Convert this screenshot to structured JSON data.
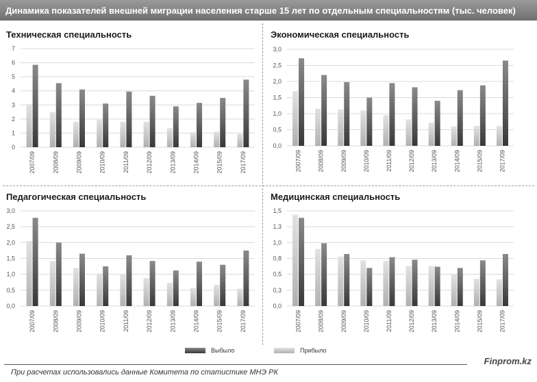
{
  "header": {
    "title": "Динамика показателей внешней миграции  населения старше 15 лет по отдельным  специальностям (тыс. человек)"
  },
  "colors": {
    "header_bg": "#7f7f7f",
    "arrived_top": "#e2e2e2",
    "arrived_bottom": "#b0b0b0",
    "departed_top": "#8a8a8a",
    "departed_bottom": "#383838",
    "grid": "#d9d9d9"
  },
  "legend": {
    "departed": "Выбыло",
    "arrived": "Прибыло"
  },
  "footer": {
    "brand": "Finprom.kz",
    "source": "При расчетах использовались данные Комитета по статистике МНЭ РК"
  },
  "chart_data": [
    {
      "type": "bar",
      "title": "Техническая специальность",
      "categories": [
        "2007/09",
        "2008/09",
        "2009/09",
        "2010/09",
        "2011/09",
        "2012/09",
        "2013/09",
        "2014/09",
        "2015/09",
        "2017/09"
      ],
      "series": [
        {
          "name": "Прибыло",
          "values": [
            3.05,
            2.5,
            1.8,
            1.95,
            1.8,
            1.8,
            1.35,
            1.05,
            1.1,
            0.95
          ]
        },
        {
          "name": "Выбыло",
          "values": [
            5.85,
            4.55,
            4.1,
            3.1,
            3.95,
            3.65,
            2.9,
            3.15,
            3.5,
            4.8
          ]
        }
      ],
      "yticks": [
        "0",
        "1",
        "2",
        "3",
        "4",
        "5",
        "6",
        "7"
      ],
      "ylim": [
        0,
        7
      ]
    },
    {
      "type": "bar",
      "title": "Экономическая специальность",
      "categories": [
        "2007/09",
        "2008/09",
        "2009/09",
        "2010/09",
        "2011/09",
        "2012/09",
        "2013/09",
        "2014/09",
        "2015/09",
        "2017/09"
      ],
      "series": [
        {
          "name": "Прибыло",
          "values": [
            1.7,
            1.15,
            1.13,
            1.1,
            0.95,
            0.82,
            0.72,
            0.6,
            0.62,
            0.62
          ]
        },
        {
          "name": "Выбыло",
          "values": [
            2.72,
            2.2,
            1.98,
            1.5,
            1.95,
            1.82,
            1.4,
            1.73,
            1.88,
            2.65
          ]
        }
      ],
      "yticks": [
        "0,0",
        "0,5",
        "1,0",
        "1,5",
        "2,0",
        "2,5",
        "3,0"
      ],
      "ylim": [
        0,
        3
      ]
    },
    {
      "type": "bar",
      "title": "Педагогическая специальность",
      "categories": [
        "2007/09",
        "2008/09",
        "2009/09",
        "2010/09",
        "2011/09",
        "2012/09",
        "2013/09",
        "2014/09",
        "2015/09",
        "2017/09"
      ],
      "series": [
        {
          "name": "Прибыло",
          "values": [
            2.05,
            1.42,
            1.2,
            1.03,
            1.0,
            0.88,
            0.73,
            0.57,
            0.67,
            0.55
          ]
        },
        {
          "name": "Выбыло",
          "values": [
            2.78,
            2.0,
            1.65,
            1.25,
            1.6,
            1.42,
            1.12,
            1.4,
            1.3,
            1.75
          ]
        }
      ],
      "yticks": [
        "0,0",
        "0,5",
        "1,0",
        "1,5",
        "2,0",
        "2,5",
        "3,0"
      ],
      "ylim": [
        0,
        3
      ]
    },
    {
      "type": "bar",
      "title": "Медицинская специальность",
      "categories": [
        "2007/09",
        "2008/09",
        "2009/09",
        "2010/09",
        "2011/09",
        "2012/09",
        "2013/09",
        "2014/09",
        "2015/09",
        "2017/09"
      ],
      "series": [
        {
          "name": "Прибыло",
          "values": [
            1.44,
            0.9,
            0.78,
            0.72,
            0.71,
            0.63,
            0.63,
            0.5,
            0.43,
            0.42
          ]
        },
        {
          "name": "Выбыло",
          "values": [
            1.39,
            0.99,
            0.82,
            0.6,
            0.77,
            0.73,
            0.62,
            0.6,
            0.72,
            0.82
          ]
        }
      ],
      "yticks": [
        "0,0",
        "0,3",
        "0,5",
        "0,8",
        "1,0",
        "1,3",
        "1,5"
      ],
      "ylim": [
        0,
        1.5
      ]
    }
  ]
}
